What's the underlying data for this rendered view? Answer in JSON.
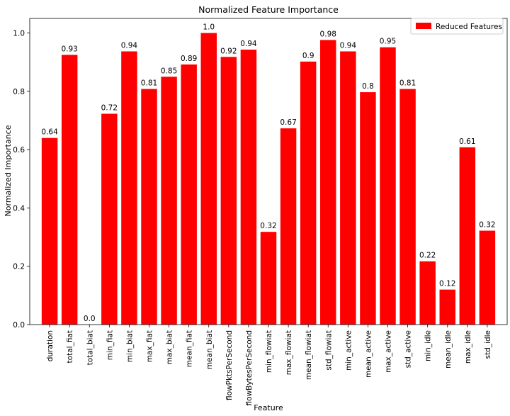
{
  "chart_data": {
    "type": "bar",
    "title": "Normalized Feature Importance",
    "xlabel": "Feature",
    "ylabel": "Normalized Importance",
    "ylim": [
      0,
      1.05
    ],
    "yticks": [
      "0.0",
      "0.2",
      "0.4",
      "0.6",
      "0.8",
      "1.0"
    ],
    "grid": false,
    "legend_position": "top-right",
    "categories": [
      "duration",
      "total_fiat",
      "total_biat",
      "min_fiat",
      "min_biat",
      "max_fiat",
      "max_biat",
      "mean_fiat",
      "mean_biat",
      "flowPktsPerSecond",
      "flowBytesPerSecond",
      "min_flowiat",
      "max_flowiat",
      "mean_flowiat",
      "std_flowiat",
      "min_active",
      "mean_active",
      "max_active",
      "std_active",
      "min_idle",
      "mean_idle",
      "max_idle",
      "std_idle"
    ],
    "series": [
      {
        "name": "Reduced Features",
        "color": "#ff0000",
        "values": [
          0.64,
          0.925,
          0.0,
          0.723,
          0.937,
          0.808,
          0.85,
          0.892,
          1.0,
          0.918,
          0.943,
          0.318,
          0.673,
          0.902,
          0.976,
          0.937,
          0.797,
          0.951,
          0.808,
          0.217,
          0.12,
          0.608,
          0.322
        ],
        "labels": [
          "0.64",
          "0.93",
          "0.0",
          "0.72",
          "0.94",
          "0.81",
          "0.85",
          "0.89",
          "1.0",
          "0.92",
          "0.94",
          "0.32",
          "0.67",
          "0.9",
          "0.98",
          "0.94",
          "0.8",
          "0.95",
          "0.81",
          "0.22",
          "0.12",
          "0.61",
          "0.32"
        ]
      }
    ]
  }
}
